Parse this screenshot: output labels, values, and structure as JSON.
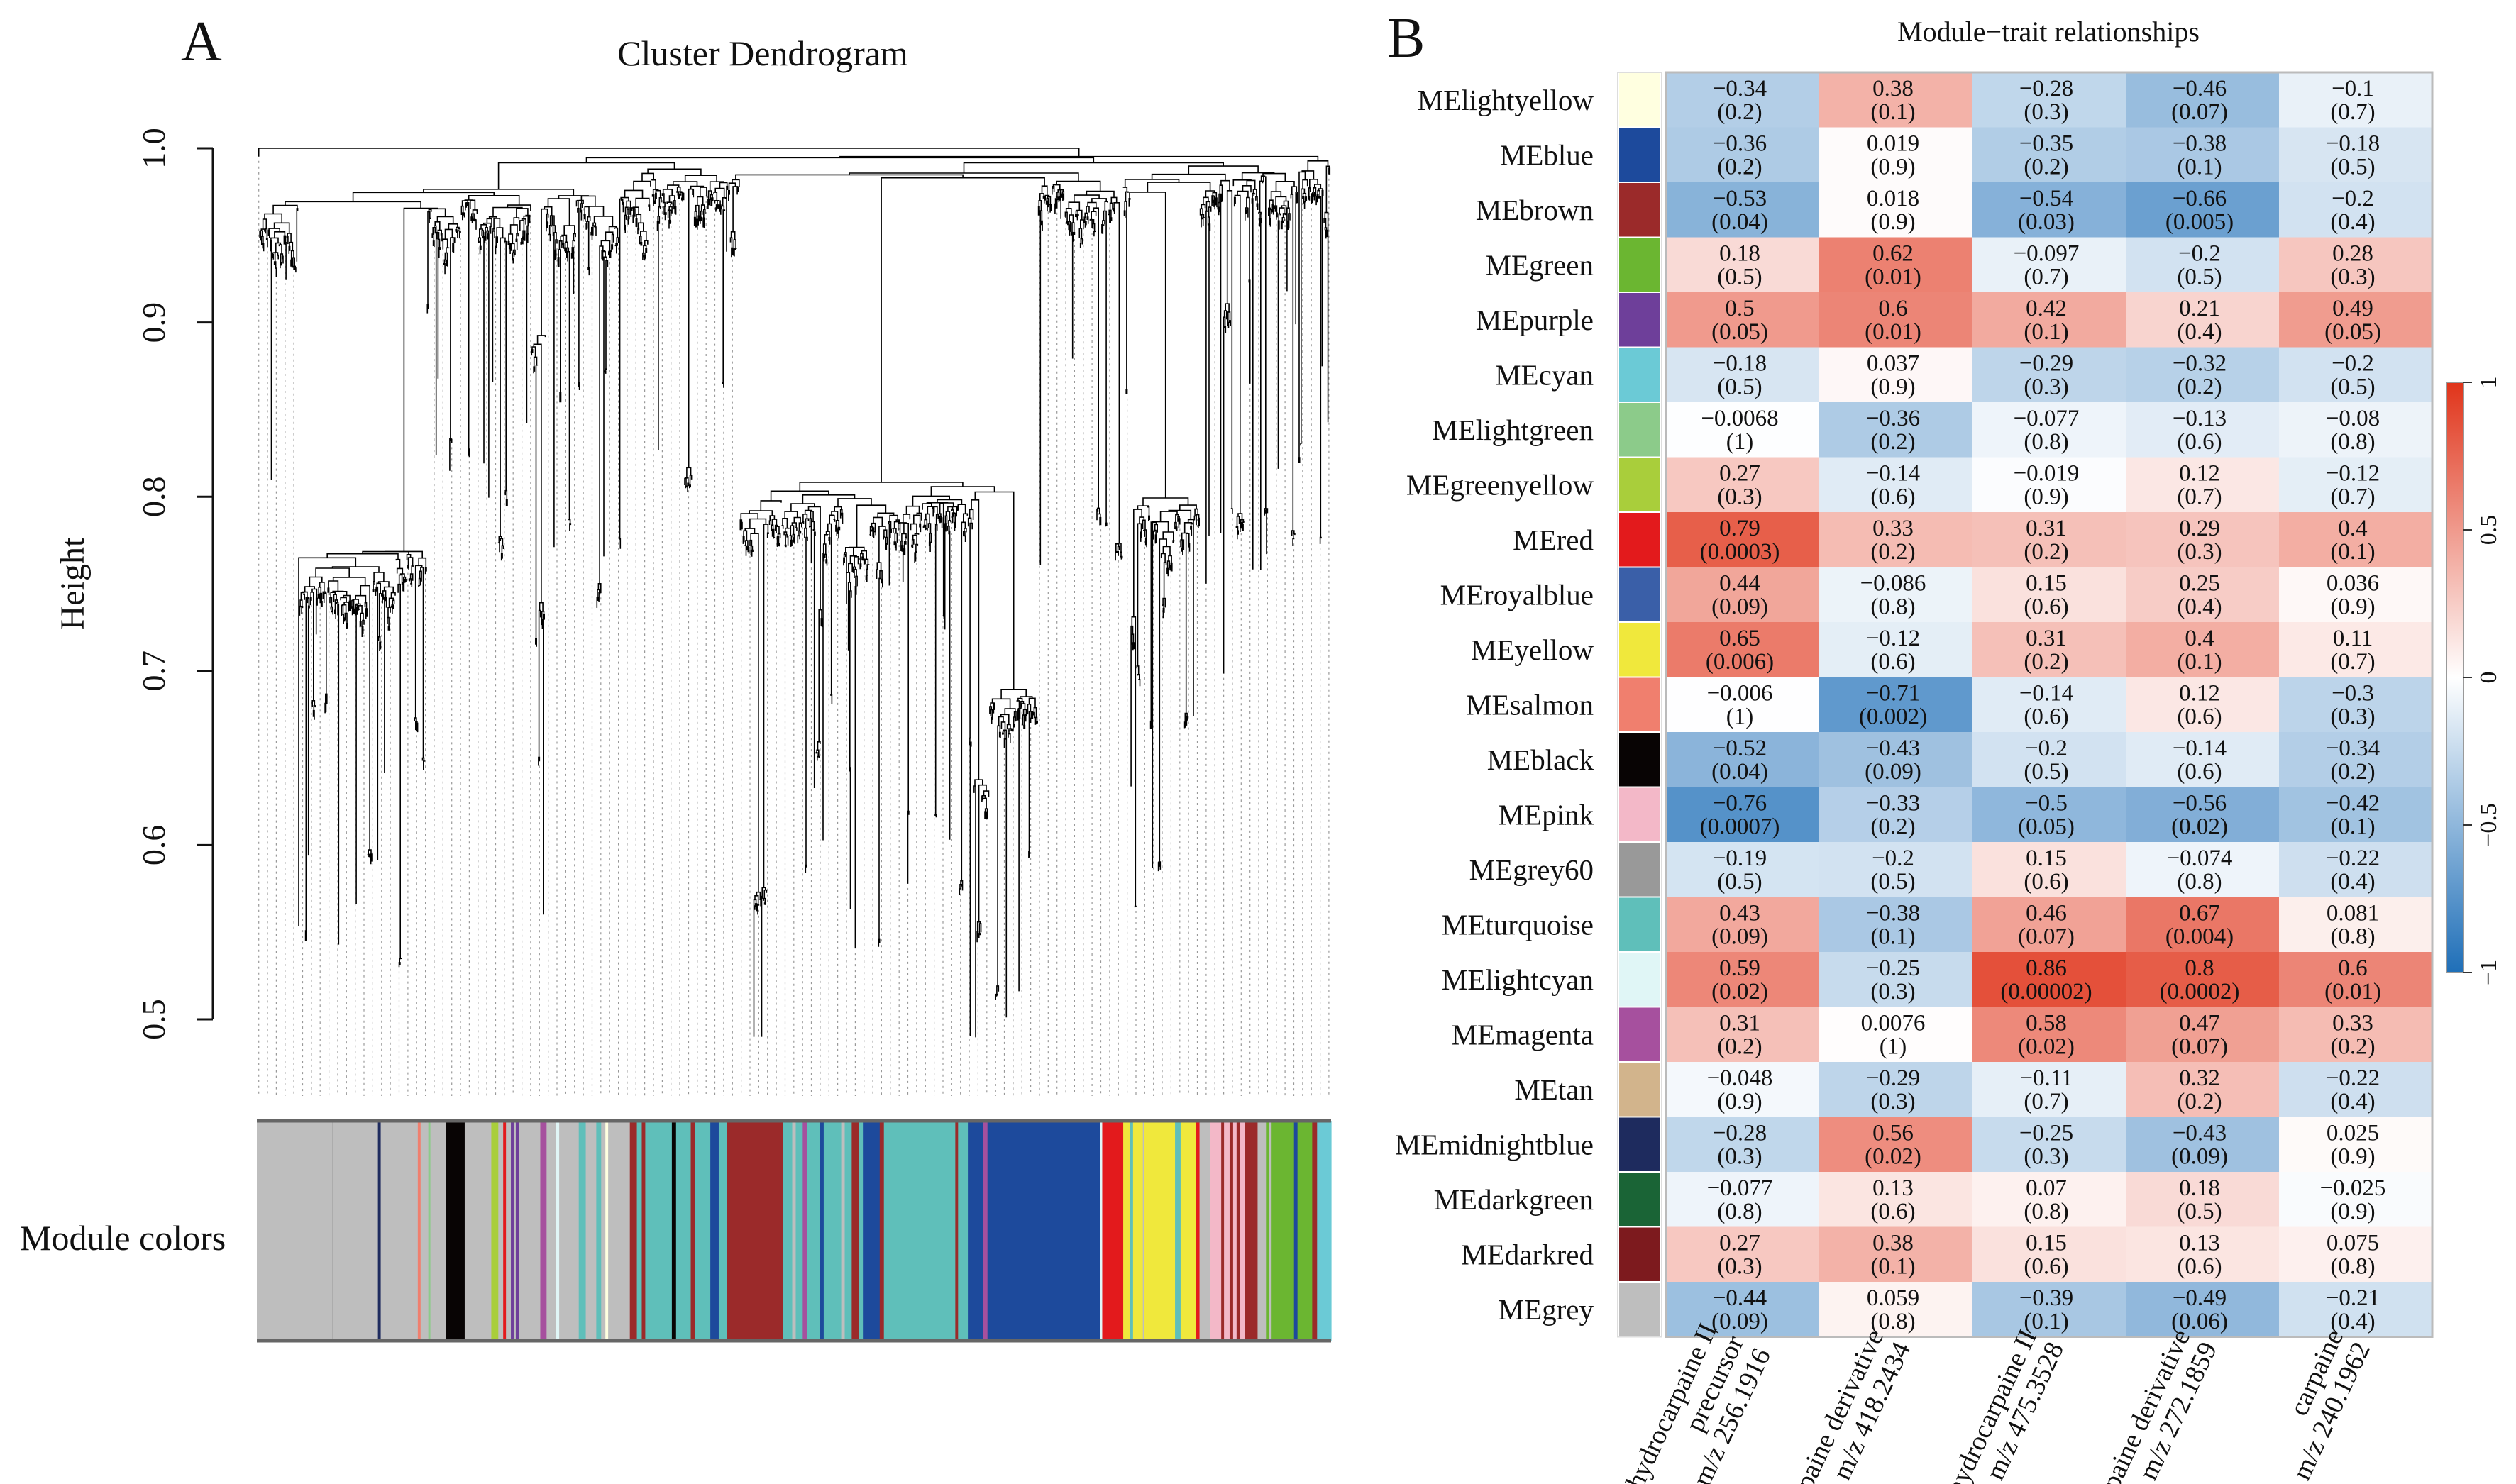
{
  "panel_a": {
    "letter": "A"
  },
  "panel_b": {
    "letter": "B"
  },
  "module_palette": {
    "lightyellow": "#FFFFE0",
    "blue": "#1D4A9C",
    "brown": "#9B2A2A",
    "green": "#6BB631",
    "purple": "#6E3F9A",
    "cyan": "#6BCAD6",
    "lightgreen": "#8CCB8A",
    "greenyellow": "#A9CE3B",
    "red": "#E31A1C",
    "royalblue": "#3A5FA8",
    "yellow": "#F0E83C",
    "salmon": "#F07F6E",
    "black": "#080404",
    "pink": "#F3B8C8",
    "grey60": "#999999",
    "turquoise": "#5FBFBA",
    "lightcyan": "#E0F6F6",
    "magenta": "#A6509E",
    "tan": "#D2B48C",
    "midnightblue": "#1E2B5E",
    "darkgreen": "#1A6436",
    "darkred": "#7D1A1E",
    "grey": "#BEBEBE"
  },
  "chart_data": [
    {
      "type": "dendrogram",
      "title": "Cluster Dendrogram",
      "ylabel": "Height",
      "ylim": [
        0.45,
        1.0
      ],
      "yticks": [
        "0.5",
        "0.6",
        "0.7",
        "0.8",
        "0.9",
        "1.0"
      ],
      "ytick_values": [
        0.5,
        0.6,
        0.7,
        0.8,
        0.9,
        1.0
      ],
      "strip_label": "Module colors",
      "module_strip": [
        [
          "grey",
          108
        ],
        [
          "grey60",
          1
        ],
        [
          "grey",
          64
        ],
        [
          "midnightblue",
          4
        ],
        [
          "grey",
          53
        ],
        [
          "salmon",
          4
        ],
        [
          "grey",
          11
        ],
        [
          "lightgreen",
          3
        ],
        [
          "grey",
          22
        ],
        [
          "black",
          27
        ],
        [
          "grey",
          38
        ],
        [
          "greenyellow",
          10
        ],
        [
          "grey",
          7
        ],
        [
          "red",
          4
        ],
        [
          "grey",
          7
        ],
        [
          "purple",
          4
        ],
        [
          "grey",
          3
        ],
        [
          "purple",
          5
        ],
        [
          "grey",
          30
        ],
        [
          "magenta",
          9
        ],
        [
          "grey",
          13
        ],
        [
          "lightcyan",
          5
        ],
        [
          "grey",
          28
        ],
        [
          "turquoise",
          10
        ],
        [
          "grey",
          15
        ],
        [
          "turquoise",
          7
        ],
        [
          "grey",
          6
        ],
        [
          "lightyellow",
          4
        ],
        [
          "grey",
          31
        ],
        [
          "brown",
          10
        ],
        [
          "turquoise",
          7
        ],
        [
          "brown",
          5
        ],
        [
          "turquoise",
          38
        ],
        [
          "black",
          6
        ],
        [
          "turquoise",
          21
        ],
        [
          "brown",
          6
        ],
        [
          "turquoise",
          22
        ],
        [
          "blue",
          12
        ],
        [
          "turquoise",
          12
        ],
        [
          "brown",
          80
        ],
        [
          "turquoise",
          13
        ],
        [
          "grey",
          5
        ],
        [
          "turquoise",
          10
        ],
        [
          "magenta",
          6
        ],
        [
          "turquoise",
          19
        ],
        [
          "blue",
          5
        ],
        [
          "turquoise",
          25
        ],
        [
          "grey",
          5
        ],
        [
          "turquoise",
          10
        ],
        [
          "brown",
          10
        ],
        [
          "turquoise",
          6
        ],
        [
          "blue",
          24
        ],
        [
          "brown",
          6
        ],
        [
          "turquoise",
          102
        ],
        [
          "brown",
          4
        ],
        [
          "turquoise",
          14
        ],
        [
          "blue",
          22
        ],
        [
          "magenta",
          6
        ],
        [
          "blue",
          161
        ],
        [
          "lightcyan",
          3
        ],
        [
          "red",
          30
        ],
        [
          "yellow",
          10
        ],
        [
          "turquoise",
          4
        ],
        [
          "yellow",
          14
        ],
        [
          "grey",
          2
        ],
        [
          "yellow",
          44
        ],
        [
          "turquoise",
          8
        ],
        [
          "yellow",
          22
        ],
        [
          "red",
          5
        ],
        [
          "grey",
          15
        ],
        [
          "pink",
          16
        ],
        [
          "brown",
          4
        ],
        [
          "pink",
          8
        ],
        [
          "brown",
          5
        ],
        [
          "pink",
          5
        ],
        [
          "brown",
          5
        ],
        [
          "pink",
          7
        ],
        [
          "brown",
          18
        ],
        [
          "grey",
          12
        ],
        [
          "green",
          4
        ],
        [
          "grey",
          4
        ],
        [
          "green",
          32
        ],
        [
          "blue",
          5
        ],
        [
          "green",
          21
        ],
        [
          "brown",
          7
        ],
        [
          "cyan",
          20
        ]
      ]
    },
    {
      "type": "heatmap",
      "title": "Module−trait relationships",
      "columns": [
        [
          "dehydrocarpaine II",
          "precursor",
          "m/z 256.1916"
        ],
        [
          "carpaine derivative",
          "m/z 418.2434"
        ],
        [
          "dehydrocarpaine II",
          "m/z 475.3528"
        ],
        [
          "carpaine derivative",
          "m/z 272.1859"
        ],
        [
          "carpaine",
          "m/z 240.1962"
        ]
      ],
      "colorbar": {
        "range": [
          -1,
          1
        ],
        "ticks": [
          "1",
          "0.5",
          "0",
          "−0.5",
          "−1"
        ],
        "tick_values": [
          1,
          0.5,
          0,
          -0.5,
          -1
        ],
        "low": "#1F6FB8",
        "mid": "#FFFFFF",
        "high": "#E0341A"
      },
      "rows": [
        {
          "name": "MElightyellow",
          "color": "lightyellow",
          "cells": [
            [
              "−0.34",
              "(0.2)"
            ],
            [
              "0.38",
              "(0.1)"
            ],
            [
              "−0.28",
              "(0.3)"
            ],
            [
              "−0.46",
              "(0.07)"
            ],
            [
              "−0.1",
              "(0.7)"
            ]
          ]
        },
        {
          "name": "MEblue",
          "color": "blue",
          "cells": [
            [
              "−0.36",
              "(0.2)"
            ],
            [
              "0.019",
              "(0.9)"
            ],
            [
              "−0.35",
              "(0.2)"
            ],
            [
              "−0.38",
              "(0.1)"
            ],
            [
              "−0.18",
              "(0.5)"
            ]
          ]
        },
        {
          "name": "MEbrown",
          "color": "brown",
          "cells": [
            [
              "−0.53",
              "(0.04)"
            ],
            [
              "0.018",
              "(0.9)"
            ],
            [
              "−0.54",
              "(0.03)"
            ],
            [
              "−0.66",
              "(0.005)"
            ],
            [
              "−0.2",
              "(0.4)"
            ]
          ]
        },
        {
          "name": "MEgreen",
          "color": "green",
          "cells": [
            [
              "0.18",
              "(0.5)"
            ],
            [
              "0.62",
              "(0.01)"
            ],
            [
              "−0.097",
              "(0.7)"
            ],
            [
              "−0.2",
              "(0.5)"
            ],
            [
              "0.28",
              "(0.3)"
            ]
          ]
        },
        {
          "name": "MEpurple",
          "color": "purple",
          "cells": [
            [
              "0.5",
              "(0.05)"
            ],
            [
              "0.6",
              "(0.01)"
            ],
            [
              "0.42",
              "(0.1)"
            ],
            [
              "0.21",
              "(0.4)"
            ],
            [
              "0.49",
              "(0.05)"
            ]
          ]
        },
        {
          "name": "MEcyan",
          "color": "cyan",
          "cells": [
            [
              "−0.18",
              "(0.5)"
            ],
            [
              "0.037",
              "(0.9)"
            ],
            [
              "−0.29",
              "(0.3)"
            ],
            [
              "−0.32",
              "(0.2)"
            ],
            [
              "−0.2",
              "(0.5)"
            ]
          ]
        },
        {
          "name": "MElightgreen",
          "color": "lightgreen",
          "cells": [
            [
              "−0.0068",
              "(1)"
            ],
            [
              "−0.36",
              "(0.2)"
            ],
            [
              "−0.077",
              "(0.8)"
            ],
            [
              "−0.13",
              "(0.6)"
            ],
            [
              "−0.08",
              "(0.8)"
            ]
          ]
        },
        {
          "name": "MEgreenyellow",
          "color": "greenyellow",
          "cells": [
            [
              "0.27",
              "(0.3)"
            ],
            [
              "−0.14",
              "(0.6)"
            ],
            [
              "−0.019",
              "(0.9)"
            ],
            [
              "0.12",
              "(0.7)"
            ],
            [
              "−0.12",
              "(0.7)"
            ]
          ]
        },
        {
          "name": "MEred",
          "color": "red",
          "cells": [
            [
              "0.79",
              "(0.0003)"
            ],
            [
              "0.33",
              "(0.2)"
            ],
            [
              "0.31",
              "(0.2)"
            ],
            [
              "0.29",
              "(0.3)"
            ],
            [
              "0.4",
              "(0.1)"
            ]
          ]
        },
        {
          "name": "MEroyalblue",
          "color": "royalblue",
          "cells": [
            [
              "0.44",
              "(0.09)"
            ],
            [
              "−0.086",
              "(0.8)"
            ],
            [
              "0.15",
              "(0.6)"
            ],
            [
              "0.25",
              "(0.4)"
            ],
            [
              "0.036",
              "(0.9)"
            ]
          ]
        },
        {
          "name": "MEyellow",
          "color": "yellow",
          "cells": [
            [
              "0.65",
              "(0.006)"
            ],
            [
              "−0.12",
              "(0.6)"
            ],
            [
              "0.31",
              "(0.2)"
            ],
            [
              "0.4",
              "(0.1)"
            ],
            [
              "0.11",
              "(0.7)"
            ]
          ]
        },
        {
          "name": "MEsalmon",
          "color": "salmon",
          "cells": [
            [
              "−0.006",
              "(1)"
            ],
            [
              "−0.71",
              "(0.002)"
            ],
            [
              "−0.14",
              "(0.6)"
            ],
            [
              "0.12",
              "(0.6)"
            ],
            [
              "−0.3",
              "(0.3)"
            ]
          ]
        },
        {
          "name": "MEblack",
          "color": "black",
          "cells": [
            [
              "−0.52",
              "(0.04)"
            ],
            [
              "−0.43",
              "(0.09)"
            ],
            [
              "−0.2",
              "(0.5)"
            ],
            [
              "−0.14",
              "(0.6)"
            ],
            [
              "−0.34",
              "(0.2)"
            ]
          ]
        },
        {
          "name": "MEpink",
          "color": "pink",
          "cells": [
            [
              "−0.76",
              "(0.0007)"
            ],
            [
              "−0.33",
              "(0.2)"
            ],
            [
              "−0.5",
              "(0.05)"
            ],
            [
              "−0.56",
              "(0.02)"
            ],
            [
              "−0.42",
              "(0.1)"
            ]
          ]
        },
        {
          "name": "MEgrey60",
          "color": "grey60",
          "cells": [
            [
              "−0.19",
              "(0.5)"
            ],
            [
              "−0.2",
              "(0.5)"
            ],
            [
              "0.15",
              "(0.6)"
            ],
            [
              "−0.074",
              "(0.8)"
            ],
            [
              "−0.22",
              "(0.4)"
            ]
          ]
        },
        {
          "name": "MEturquoise",
          "color": "turquoise",
          "cells": [
            [
              "0.43",
              "(0.09)"
            ],
            [
              "−0.38",
              "(0.1)"
            ],
            [
              "0.46",
              "(0.07)"
            ],
            [
              "0.67",
              "(0.004)"
            ],
            [
              "0.081",
              "(0.8)"
            ]
          ]
        },
        {
          "name": "MElightcyan",
          "color": "lightcyan",
          "cells": [
            [
              "0.59",
              "(0.02)"
            ],
            [
              "−0.25",
              "(0.3)"
            ],
            [
              "0.86",
              "(0.00002)"
            ],
            [
              "0.8",
              "(0.0002)"
            ],
            [
              "0.6",
              "(0.01)"
            ]
          ]
        },
        {
          "name": "MEmagenta",
          "color": "magenta",
          "cells": [
            [
              "0.31",
              "(0.2)"
            ],
            [
              "0.0076",
              "(1)"
            ],
            [
              "0.58",
              "(0.02)"
            ],
            [
              "0.47",
              "(0.07)"
            ],
            [
              "0.33",
              "(0.2)"
            ]
          ]
        },
        {
          "name": "MEtan",
          "color": "tan",
          "cells": [
            [
              "−0.048",
              "(0.9)"
            ],
            [
              "−0.29",
              "(0.3)"
            ],
            [
              "−0.11",
              "(0.7)"
            ],
            [
              "0.32",
              "(0.2)"
            ],
            [
              "−0.22",
              "(0.4)"
            ]
          ]
        },
        {
          "name": "MEmidnightblue",
          "color": "midnightblue",
          "cells": [
            [
              "−0.28",
              "(0.3)"
            ],
            [
              "0.56",
              "(0.02)"
            ],
            [
              "−0.25",
              "(0.3)"
            ],
            [
              "−0.43",
              "(0.09)"
            ],
            [
              "0.025",
              "(0.9)"
            ]
          ]
        },
        {
          "name": "MEdarkgreen",
          "color": "darkgreen",
          "cells": [
            [
              "−0.077",
              "(0.8)"
            ],
            [
              "0.13",
              "(0.6)"
            ],
            [
              "0.07",
              "(0.8)"
            ],
            [
              "0.18",
              "(0.5)"
            ],
            [
              "−0.025",
              "(0.9)"
            ]
          ]
        },
        {
          "name": "MEdarkred",
          "color": "darkred",
          "cells": [
            [
              "0.27",
              "(0.3)"
            ],
            [
              "0.38",
              "(0.1)"
            ],
            [
              "0.15",
              "(0.6)"
            ],
            [
              "0.13",
              "(0.6)"
            ],
            [
              "0.075",
              "(0.8)"
            ]
          ]
        },
        {
          "name": "MEgrey",
          "color": "grey",
          "cells": [
            [
              "−0.44",
              "(0.09)"
            ],
            [
              "0.059",
              "(0.8)"
            ],
            [
              "−0.39",
              "(0.1)"
            ],
            [
              "−0.49",
              "(0.06)"
            ],
            [
              "−0.21",
              "(0.4)"
            ]
          ]
        }
      ]
    }
  ]
}
